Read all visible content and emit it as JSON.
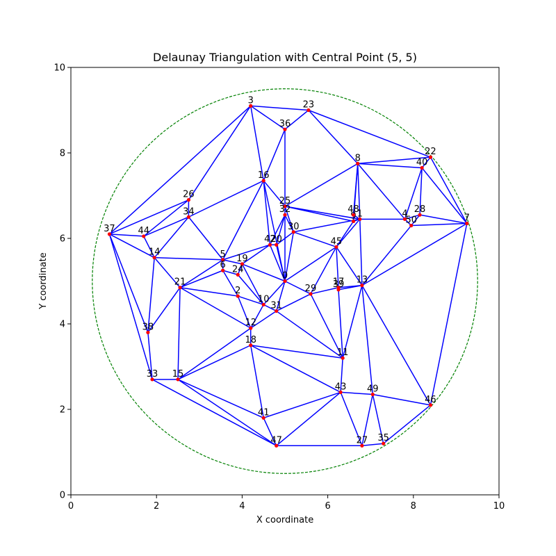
{
  "chart_data": {
    "type": "scatter",
    "title": "Delaunay Triangulation with Central Point (5, 5)",
    "xlabel": "X coordinate",
    "ylabel": "Y coordinate",
    "xlim": [
      0,
      10
    ],
    "ylim": [
      0,
      10
    ],
    "xticks": [
      "0",
      "2",
      "4",
      "6",
      "8",
      "10"
    ],
    "yticks": [
      "0",
      "2",
      "4",
      "6",
      "8",
      "10"
    ],
    "grid": false,
    "colors": {
      "points": "#ff0000",
      "edges": "#0000ff",
      "circle": "#008000"
    },
    "circle": {
      "center": [
        5,
        5
      ],
      "radius": 4.5,
      "style": "dashed"
    },
    "points": [
      {
        "label": "0",
        "x": 5.0,
        "y": 5.0
      },
      {
        "label": "1",
        "x": 6.75,
        "y": 6.45
      },
      {
        "label": "2",
        "x": 3.9,
        "y": 4.65
      },
      {
        "label": "3",
        "x": 4.2,
        "y": 9.1
      },
      {
        "label": "4",
        "x": 7.8,
        "y": 6.45
      },
      {
        "label": "5",
        "x": 3.55,
        "y": 5.5
      },
      {
        "label": "6",
        "x": 3.55,
        "y": 5.25
      },
      {
        "label": "7",
        "x": 9.25,
        "y": 6.35
      },
      {
        "label": "8",
        "x": 6.7,
        "y": 7.75
      },
      {
        "label": "9",
        "x": 6.6,
        "y": 6.4
      },
      {
        "label": "10",
        "x": 4.5,
        "y": 4.45
      },
      {
        "label": "11",
        "x": 6.35,
        "y": 3.2
      },
      {
        "label": "12",
        "x": 4.2,
        "y": 3.9
      },
      {
        "label": "13",
        "x": 6.8,
        "y": 4.9
      },
      {
        "label": "14",
        "x": 1.95,
        "y": 5.55
      },
      {
        "label": "15",
        "x": 2.5,
        "y": 2.7
      },
      {
        "label": "16",
        "x": 4.5,
        "y": 7.35
      },
      {
        "label": "17",
        "x": 6.25,
        "y": 4.85
      },
      {
        "label": "18",
        "x": 4.2,
        "y": 3.5
      },
      {
        "label": "19",
        "x": 4.0,
        "y": 5.4
      },
      {
        "label": "20",
        "x": 4.8,
        "y": 5.85
      },
      {
        "label": "21",
        "x": 2.55,
        "y": 4.85
      },
      {
        "label": "22",
        "x": 8.4,
        "y": 7.9
      },
      {
        "label": "23",
        "x": 5.55,
        "y": 9.0
      },
      {
        "label": "24",
        "x": 3.9,
        "y": 5.15
      },
      {
        "label": "25",
        "x": 5.0,
        "y": 6.75
      },
      {
        "label": "26",
        "x": 2.75,
        "y": 6.9
      },
      {
        "label": "27",
        "x": 6.8,
        "y": 1.15
      },
      {
        "label": "28",
        "x": 8.15,
        "y": 6.55
      },
      {
        "label": "29",
        "x": 5.6,
        "y": 4.7
      },
      {
        "label": "30",
        "x": 5.2,
        "y": 6.15
      },
      {
        "label": "31",
        "x": 4.8,
        "y": 4.3
      },
      {
        "label": "32",
        "x": 5.0,
        "y": 6.55
      },
      {
        "label": "33",
        "x": 1.9,
        "y": 2.7
      },
      {
        "label": "34",
        "x": 2.75,
        "y": 6.5
      },
      {
        "label": "35",
        "x": 7.3,
        "y": 1.2
      },
      {
        "label": "36",
        "x": 5.0,
        "y": 8.55
      },
      {
        "label": "37",
        "x": 0.9,
        "y": 6.1
      },
      {
        "label": "38",
        "x": 1.8,
        "y": 3.8
      },
      {
        "label": "39",
        "x": 6.25,
        "y": 4.8
      },
      {
        "label": "40",
        "x": 8.2,
        "y": 7.65
      },
      {
        "label": "41",
        "x": 4.5,
        "y": 1.8
      },
      {
        "label": "42",
        "x": 4.65,
        "y": 5.85
      },
      {
        "label": "43",
        "x": 6.3,
        "y": 2.4
      },
      {
        "label": "44",
        "x": 1.7,
        "y": 6.05
      },
      {
        "label": "45",
        "x": 6.2,
        "y": 5.8
      },
      {
        "label": "46",
        "x": 8.4,
        "y": 2.1
      },
      {
        "label": "47",
        "x": 4.8,
        "y": 1.15
      },
      {
        "label": "48",
        "x": 6.6,
        "y": 6.55
      },
      {
        "label": "49",
        "x": 7.05,
        "y": 2.35
      },
      {
        "label": "50",
        "x": 7.95,
        "y": 6.3
      }
    ],
    "edges": [
      [
        "37",
        "3"
      ],
      [
        "37",
        "44"
      ],
      [
        "37",
        "14"
      ],
      [
        "37",
        "38"
      ],
      [
        "37",
        "33"
      ],
      [
        "37",
        "26"
      ],
      [
        "44",
        "26"
      ],
      [
        "44",
        "14"
      ],
      [
        "44",
        "34"
      ],
      [
        "26",
        "3"
      ],
      [
        "26",
        "34"
      ],
      [
        "34",
        "16"
      ],
      [
        "34",
        "5"
      ],
      [
        "34",
        "14"
      ],
      [
        "14",
        "5"
      ],
      [
        "14",
        "21"
      ],
      [
        "14",
        "38"
      ],
      [
        "38",
        "21"
      ],
      [
        "38",
        "33"
      ],
      [
        "33",
        "15"
      ],
      [
        "33",
        "47"
      ],
      [
        "21",
        "5"
      ],
      [
        "21",
        "15"
      ],
      [
        "21",
        "2"
      ],
      [
        "21",
        "12"
      ],
      [
        "21",
        "6"
      ],
      [
        "15",
        "12"
      ],
      [
        "15",
        "18"
      ],
      [
        "15",
        "41"
      ],
      [
        "15",
        "47"
      ],
      [
        "3",
        "16"
      ],
      [
        "3",
        "36"
      ],
      [
        "3",
        "23"
      ],
      [
        "36",
        "23"
      ],
      [
        "36",
        "16"
      ],
      [
        "36",
        "25"
      ],
      [
        "23",
        "8"
      ],
      [
        "23",
        "22"
      ],
      [
        "16",
        "5"
      ],
      [
        "16",
        "42"
      ],
      [
        "16",
        "25"
      ],
      [
        "16",
        "0"
      ],
      [
        "25",
        "8"
      ],
      [
        "25",
        "9"
      ],
      [
        "25",
        "1"
      ],
      [
        "25",
        "30"
      ],
      [
        "25",
        "32"
      ],
      [
        "32",
        "42"
      ],
      [
        "32",
        "0"
      ],
      [
        "32",
        "30"
      ],
      [
        "32",
        "20"
      ],
      [
        "30",
        "20"
      ],
      [
        "30",
        "1"
      ],
      [
        "30",
        "45"
      ],
      [
        "30",
        "0"
      ],
      [
        "42",
        "20"
      ],
      [
        "42",
        "5"
      ],
      [
        "42",
        "19"
      ],
      [
        "42",
        "0"
      ],
      [
        "20",
        "0"
      ],
      [
        "5",
        "19"
      ],
      [
        "5",
        "6"
      ],
      [
        "6",
        "24"
      ],
      [
        "6",
        "2"
      ],
      [
        "19",
        "24"
      ],
      [
        "19",
        "10"
      ],
      [
        "19",
        "0"
      ],
      [
        "24",
        "10"
      ],
      [
        "2",
        "10"
      ],
      [
        "2",
        "12"
      ],
      [
        "10",
        "12"
      ],
      [
        "10",
        "31"
      ],
      [
        "10",
        "0"
      ],
      [
        "0",
        "31"
      ],
      [
        "0",
        "29"
      ],
      [
        "0",
        "45"
      ],
      [
        "31",
        "12"
      ],
      [
        "31",
        "29"
      ],
      [
        "31",
        "11"
      ],
      [
        "12",
        "18"
      ],
      [
        "18",
        "41"
      ],
      [
        "18",
        "11"
      ],
      [
        "18",
        "43"
      ],
      [
        "41",
        "47"
      ],
      [
        "41",
        "43"
      ],
      [
        "47",
        "43"
      ],
      [
        "47",
        "27"
      ],
      [
        "43",
        "11"
      ],
      [
        "43",
        "27"
      ],
      [
        "43",
        "49"
      ],
      [
        "27",
        "35"
      ],
      [
        "27",
        "49"
      ],
      [
        "35",
        "49"
      ],
      [
        "35",
        "46"
      ],
      [
        "49",
        "46"
      ],
      [
        "49",
        "13"
      ],
      [
        "46",
        "7"
      ],
      [
        "46",
        "13"
      ],
      [
        "11",
        "29"
      ],
      [
        "11",
        "39"
      ],
      [
        "11",
        "13"
      ],
      [
        "29",
        "45"
      ],
      [
        "29",
        "17"
      ],
      [
        "17",
        "45"
      ],
      [
        "17",
        "13"
      ],
      [
        "17",
        "39"
      ],
      [
        "39",
        "13"
      ],
      [
        "45",
        "9"
      ],
      [
        "45",
        "1"
      ],
      [
        "45",
        "13"
      ],
      [
        "13",
        "1"
      ],
      [
        "13",
        "7"
      ],
      [
        "13",
        "50"
      ],
      [
        "9",
        "8"
      ],
      [
        "9",
        "1"
      ],
      [
        "9",
        "48"
      ],
      [
        "48",
        "1"
      ],
      [
        "48",
        "8"
      ],
      [
        "1",
        "8"
      ],
      [
        "1",
        "4"
      ],
      [
        "8",
        "22"
      ],
      [
        "8",
        "4"
      ],
      [
        "8",
        "40"
      ],
      [
        "4",
        "40"
      ],
      [
        "4",
        "28"
      ],
      [
        "4",
        "50"
      ],
      [
        "50",
        "28"
      ],
      [
        "50",
        "7"
      ],
      [
        "28",
        "40"
      ],
      [
        "28",
        "7"
      ],
      [
        "40",
        "22"
      ],
      [
        "40",
        "7"
      ],
      [
        "22",
        "7"
      ]
    ]
  }
}
